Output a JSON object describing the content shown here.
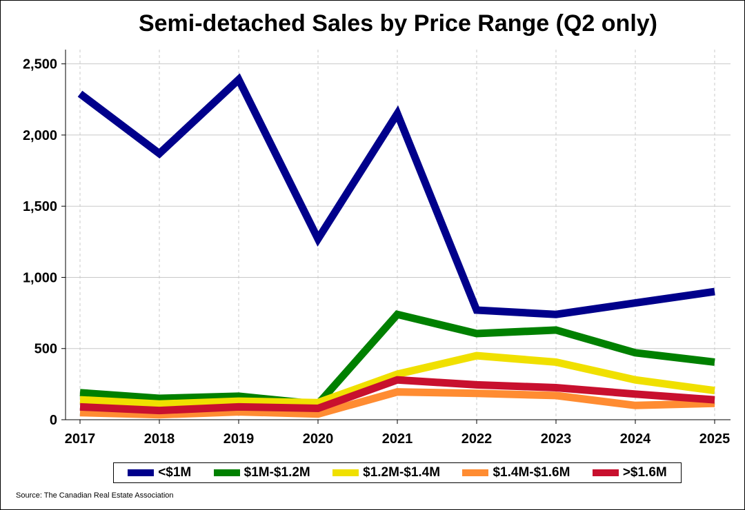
{
  "chart_data": {
    "type": "line",
    "title": "Semi-detached Sales by Price Range (Q2 only)",
    "xlabel": "",
    "ylabel": "",
    "categories": [
      "2017",
      "2018",
      "2019",
      "2020",
      "2021",
      "2022",
      "2023",
      "2024",
      "2025"
    ],
    "ylim": [
      0,
      2600
    ],
    "yticks": [
      0,
      500,
      1000,
      1500,
      2000,
      2500
    ],
    "ytick_labels": [
      "0",
      "500",
      "1,000",
      "1,500",
      "2,000",
      "2,500"
    ],
    "grid": "horizontal-solid and vertical-dashed",
    "legend_position": "bottom",
    "series": [
      {
        "name": "<$1M",
        "color": "#00008b",
        "values": [
          2290,
          1870,
          2390,
          1270,
          2150,
          770,
          740,
          820,
          900
        ]
      },
      {
        "name": "$1M-$1.2M",
        "color": "#008000",
        "values": [
          190,
          150,
          165,
          110,
          740,
          605,
          630,
          470,
          405
        ]
      },
      {
        "name": "$1.2M-$1.4M",
        "color": "#f0e000",
        "values": [
          140,
          110,
          130,
          120,
          320,
          450,
          405,
          280,
          205
        ]
      },
      {
        "name": "$1.4M-$1.6M",
        "color": "#ff8c32",
        "values": [
          50,
          35,
          55,
          40,
          195,
          185,
          170,
          100,
          115
        ]
      },
      {
        "name": ">$1.6M",
        "color": "#c8102e",
        "values": [
          90,
          65,
          90,
          80,
          280,
          245,
          225,
          180,
          140
        ]
      }
    ]
  },
  "source": "Source: The Canadian Real Estate Association"
}
